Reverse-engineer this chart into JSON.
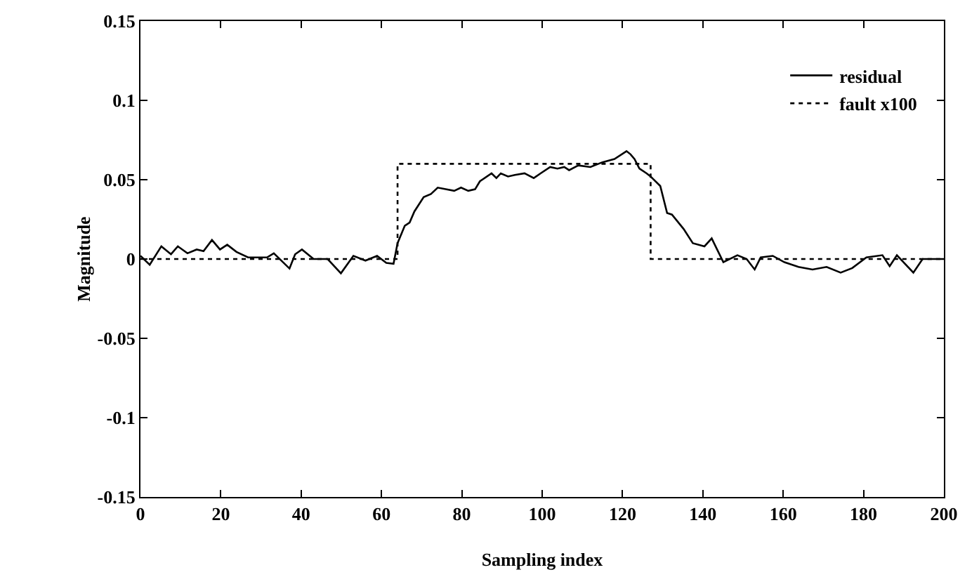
{
  "chart_data": {
    "type": "line",
    "xlabel": "Sampling index",
    "ylabel": "Magnitude",
    "xlim": [
      0,
      200
    ],
    "xticks": [
      0,
      20,
      40,
      60,
      80,
      100,
      120,
      140,
      160,
      180,
      200
    ],
    "ylim": [
      -0.15,
      0.15
    ],
    "yticks": [
      -0.15,
      -0.1,
      -0.05,
      0,
      0.05,
      0.1,
      0.15
    ],
    "grid": false,
    "legend": "top right",
    "marker": "none",
    "series": [
      {
        "name": "residual",
        "color": "#000000",
        "line_style": "solid",
        "x": [
          0,
          2.3,
          5.2,
          7.6,
          9.3,
          11.7,
          14,
          15.7,
          17.8,
          19.8,
          21.6,
          23.9,
          26.8,
          31.5,
          33.2,
          37.1,
          38.5,
          40.2,
          43.1,
          46.6,
          49.9,
          53,
          56,
          58.9,
          61.2,
          63,
          64,
          65.8,
          67,
          68.2,
          70.5,
          72.3,
          74,
          78.1,
          79.8,
          81.6,
          83.3,
          84.5,
          87.4,
          88.6,
          89.7,
          91.5,
          93.2,
          95.6,
          97.9,
          99.6,
          102,
          103.8,
          105.5,
          106.7,
          109,
          112,
          115,
          118,
          121,
          122,
          123,
          124.2,
          126,
          127,
          129.4,
          131.1,
          132.3,
          135.2,
          137.5,
          140.4,
          142.2,
          145.1,
          148.6,
          150.9,
          152.9,
          154.4,
          157.4,
          160.3,
          163.8,
          167.3,
          170.8,
          174.3,
          177.2,
          180.7,
          184.7,
          186.5,
          188.3,
          192.4,
          194.7,
          200
        ],
        "values": [
          0.002,
          -0.0036,
          0.008,
          0.003,
          0.008,
          0.0036,
          0.006,
          0.005,
          0.012,
          0.006,
          0.009,
          0.0045,
          0.001,
          0.001,
          0.0036,
          -0.006,
          0.003,
          0.006,
          0,
          0,
          -0.009,
          0.002,
          -0.001,
          0.002,
          -0.0024,
          -0.003,
          0.01,
          0.021,
          0.023,
          0.03,
          0.039,
          0.041,
          0.045,
          0.043,
          0.045,
          0.043,
          0.044,
          0.049,
          0.054,
          0.051,
          0.054,
          0.052,
          0.053,
          0.054,
          0.051,
          0.054,
          0.058,
          0.057,
          0.058,
          0.056,
          0.059,
          0.058,
          0.061,
          0.063,
          0.068,
          0.066,
          0.063,
          0.057,
          0.054,
          0.052,
          0.046,
          0.029,
          0.028,
          0.019,
          0.01,
          0.008,
          0.013,
          -0.002,
          0.0024,
          0,
          -0.0066,
          0.001,
          0.002,
          -0.002,
          -0.005,
          -0.0066,
          -0.005,
          -0.0086,
          -0.0057,
          0.001,
          0.0024,
          -0.0045,
          0.0024,
          -0.0086,
          0,
          0
        ]
      },
      {
        "name": "fault x100",
        "color": "#000000",
        "line_style": "dotted",
        "x": [
          0,
          64,
          64,
          127,
          127,
          200
        ],
        "values": [
          0,
          0,
          0.06,
          0.06,
          0,
          0
        ]
      }
    ]
  }
}
